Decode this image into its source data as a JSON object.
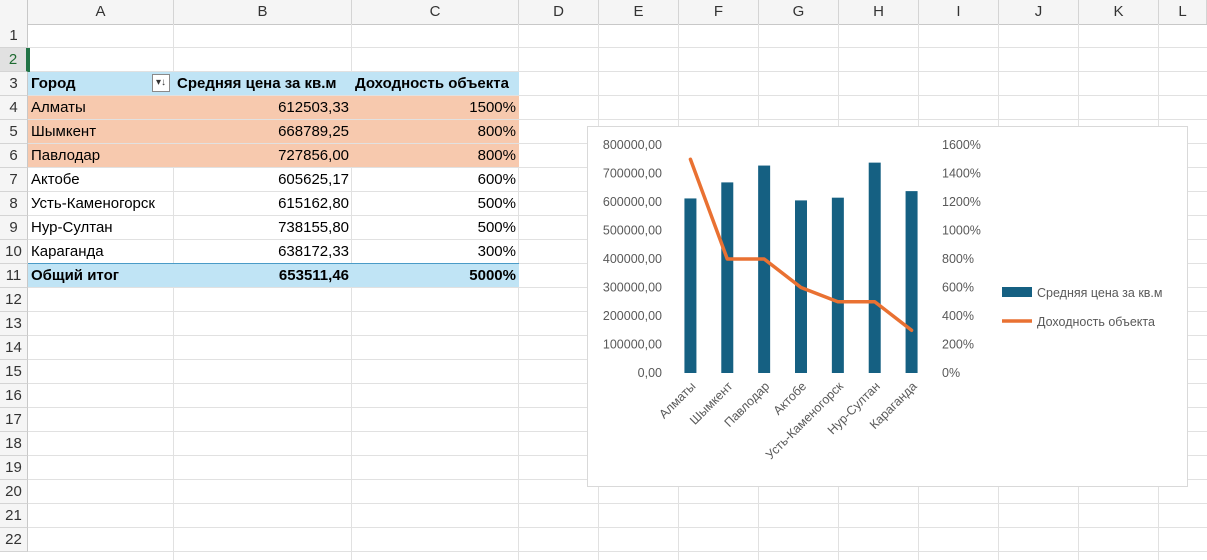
{
  "columns": [
    "A",
    "B",
    "C",
    "D",
    "E",
    "F",
    "G",
    "H",
    "I",
    "J",
    "K",
    "L"
  ],
  "rows": [
    "1",
    "2",
    "3",
    "4",
    "5",
    "6",
    "7",
    "8",
    "9",
    "10",
    "11",
    "12",
    "13",
    "14",
    "15",
    "16",
    "17",
    "18",
    "19",
    "20",
    "21",
    "22"
  ],
  "pivot": {
    "headers": [
      "Город",
      "Средняя цена за кв.м",
      "Доходность объекта"
    ],
    "data": [
      [
        "Алматы",
        "612503,33",
        "1500%"
      ],
      [
        "Шымкент",
        "668789,25",
        "800%"
      ],
      [
        "Павлодар",
        "727856,00",
        "800%"
      ],
      [
        "Актобе",
        "605625,17",
        "600%"
      ],
      [
        "Усть-Каменогорск",
        "615162,80",
        "500%"
      ],
      [
        "Нур-Султан",
        "738155,80",
        "500%"
      ],
      [
        "Караганда",
        "638172,33",
        "300%"
      ]
    ],
    "total": [
      "Общий итог",
      "653511,46",
      "5000%"
    ]
  },
  "filter_icon": "sort-filter-icon",
  "colors": {
    "header_fill": "#c0e4f5",
    "highlight_fill": "#f7c9ae",
    "bar": "#156082",
    "line": "#e97132"
  },
  "chart_data": {
    "type": "bar",
    "combo": "bar+line",
    "categories": [
      "Алматы",
      "Шымкент",
      "Павлодар",
      "Актобе",
      "Усть-Каменогорск",
      "Нур-Султан",
      "Караганда"
    ],
    "series": [
      {
        "name": "Средняя цена за кв.м",
        "type": "bar",
        "axis": "left",
        "values": [
          612503.33,
          668789.25,
          727856.0,
          605625.17,
          615162.8,
          738155.8,
          638172.33
        ]
      },
      {
        "name": "Доходность объекта",
        "type": "line",
        "axis": "right",
        "values": [
          1500,
          800,
          800,
          600,
          500,
          500,
          300
        ]
      }
    ],
    "y_left": {
      "min": 0,
      "max": 800000,
      "ticks": [
        "0,00",
        "100000,00",
        "200000,00",
        "300000,00",
        "400000,00",
        "500000,00",
        "600000,00",
        "700000,00",
        "800000,00"
      ]
    },
    "y_right": {
      "min": 0,
      "max": 1600,
      "ticks": [
        "0%",
        "200%",
        "400%",
        "600%",
        "800%",
        "1000%",
        "1200%",
        "1400%",
        "1600%"
      ]
    },
    "legend_position": "right",
    "grid": false
  }
}
